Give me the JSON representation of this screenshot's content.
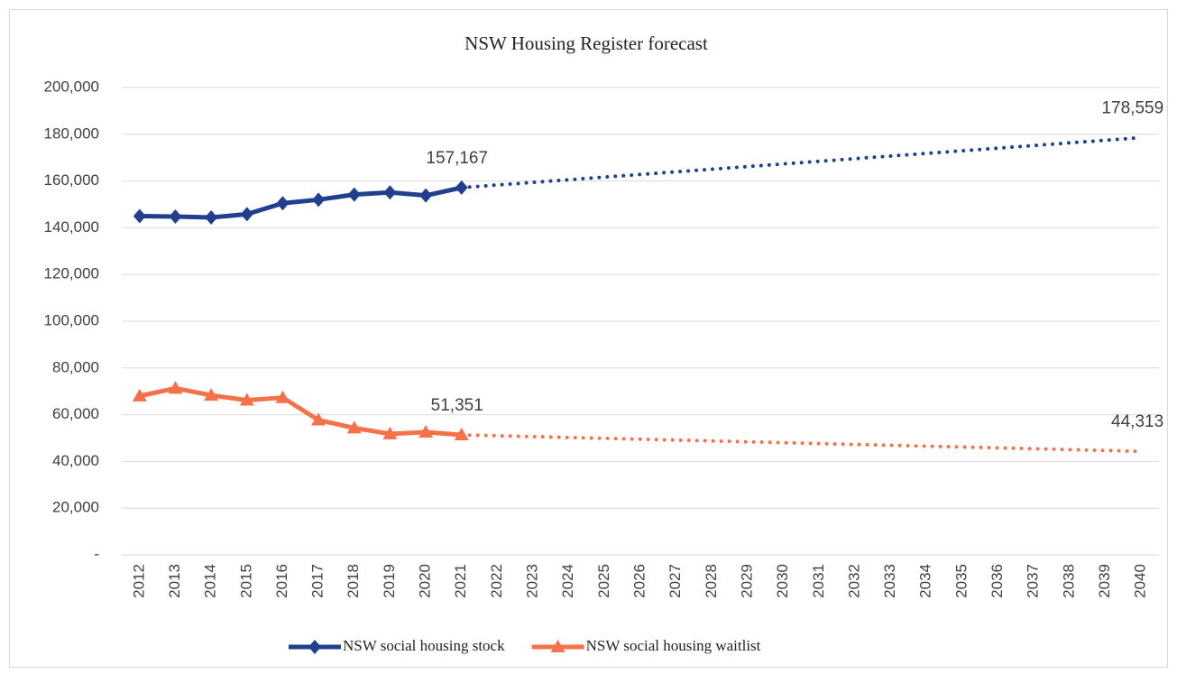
{
  "chart_data": {
    "type": "line",
    "title": "NSW Housing Register forecast",
    "categories": [
      "2012",
      "2013",
      "2014",
      "2015",
      "2016",
      "2017",
      "2018",
      "2019",
      "2020",
      "2021",
      "2022",
      "2023",
      "2024",
      "2025",
      "2026",
      "2027",
      "2028",
      "2029",
      "2030",
      "2031",
      "2032",
      "2033",
      "2034",
      "2035",
      "2036",
      "2037",
      "2038",
      "2039",
      "2040"
    ],
    "forecast_from": "2021",
    "series": [
      {
        "name": "NSW social housing stock",
        "color": "#203f8f",
        "marker": "diamond",
        "values": [
          145000,
          144800,
          144400,
          145800,
          150500,
          152000,
          154200,
          155100,
          153800,
          157167,
          158293,
          159419,
          160545,
          161671,
          162797,
          163923,
          165049,
          166175,
          167301,
          168427,
          169553,
          170679,
          171805,
          172931,
          174057,
          175183,
          176308,
          177434,
          178559
        ],
        "value_labels": [
          null,
          null,
          null,
          null,
          null,
          null,
          null,
          null,
          null,
          "157,167",
          null,
          null,
          null,
          null,
          null,
          null,
          null,
          null,
          null,
          null,
          null,
          null,
          null,
          null,
          null,
          null,
          null,
          null,
          "178,559"
        ]
      },
      {
        "name": "NSW social housing waitlist",
        "color": "#f4714a",
        "marker": "triangle",
        "values": [
          68000,
          71300,
          68300,
          66200,
          67300,
          57700,
          54300,
          51800,
          52500,
          51351,
          50981,
          50610,
          50240,
          49869,
          49499,
          49129,
          48758,
          48388,
          48017,
          47647,
          47277,
          46906,
          46536,
          46165,
          45795,
          45425,
          45054,
          44684,
          44313
        ],
        "value_labels": [
          null,
          null,
          null,
          null,
          null,
          null,
          null,
          null,
          null,
          "51,351",
          null,
          null,
          null,
          null,
          null,
          null,
          null,
          null,
          null,
          null,
          null,
          null,
          null,
          null,
          null,
          null,
          null,
          null,
          "44,313"
        ]
      }
    ],
    "ylim": [
      0,
      200000
    ],
    "yticks": [
      {
        "value": 0,
        "label": "-"
      },
      {
        "value": 20000,
        "label": "20,000"
      },
      {
        "value": 40000,
        "label": "40,000"
      },
      {
        "value": 60000,
        "label": "60,000"
      },
      {
        "value": 80000,
        "label": "80,000"
      },
      {
        "value": 100000,
        "label": "100,000"
      },
      {
        "value": 120000,
        "label": "120,000"
      },
      {
        "value": 140000,
        "label": "140,000"
      },
      {
        "value": 160000,
        "label": "160,000"
      },
      {
        "value": 180000,
        "label": "180,000"
      },
      {
        "value": 200000,
        "label": "200,000"
      }
    ],
    "grid": true,
    "legend": "bottom"
  }
}
